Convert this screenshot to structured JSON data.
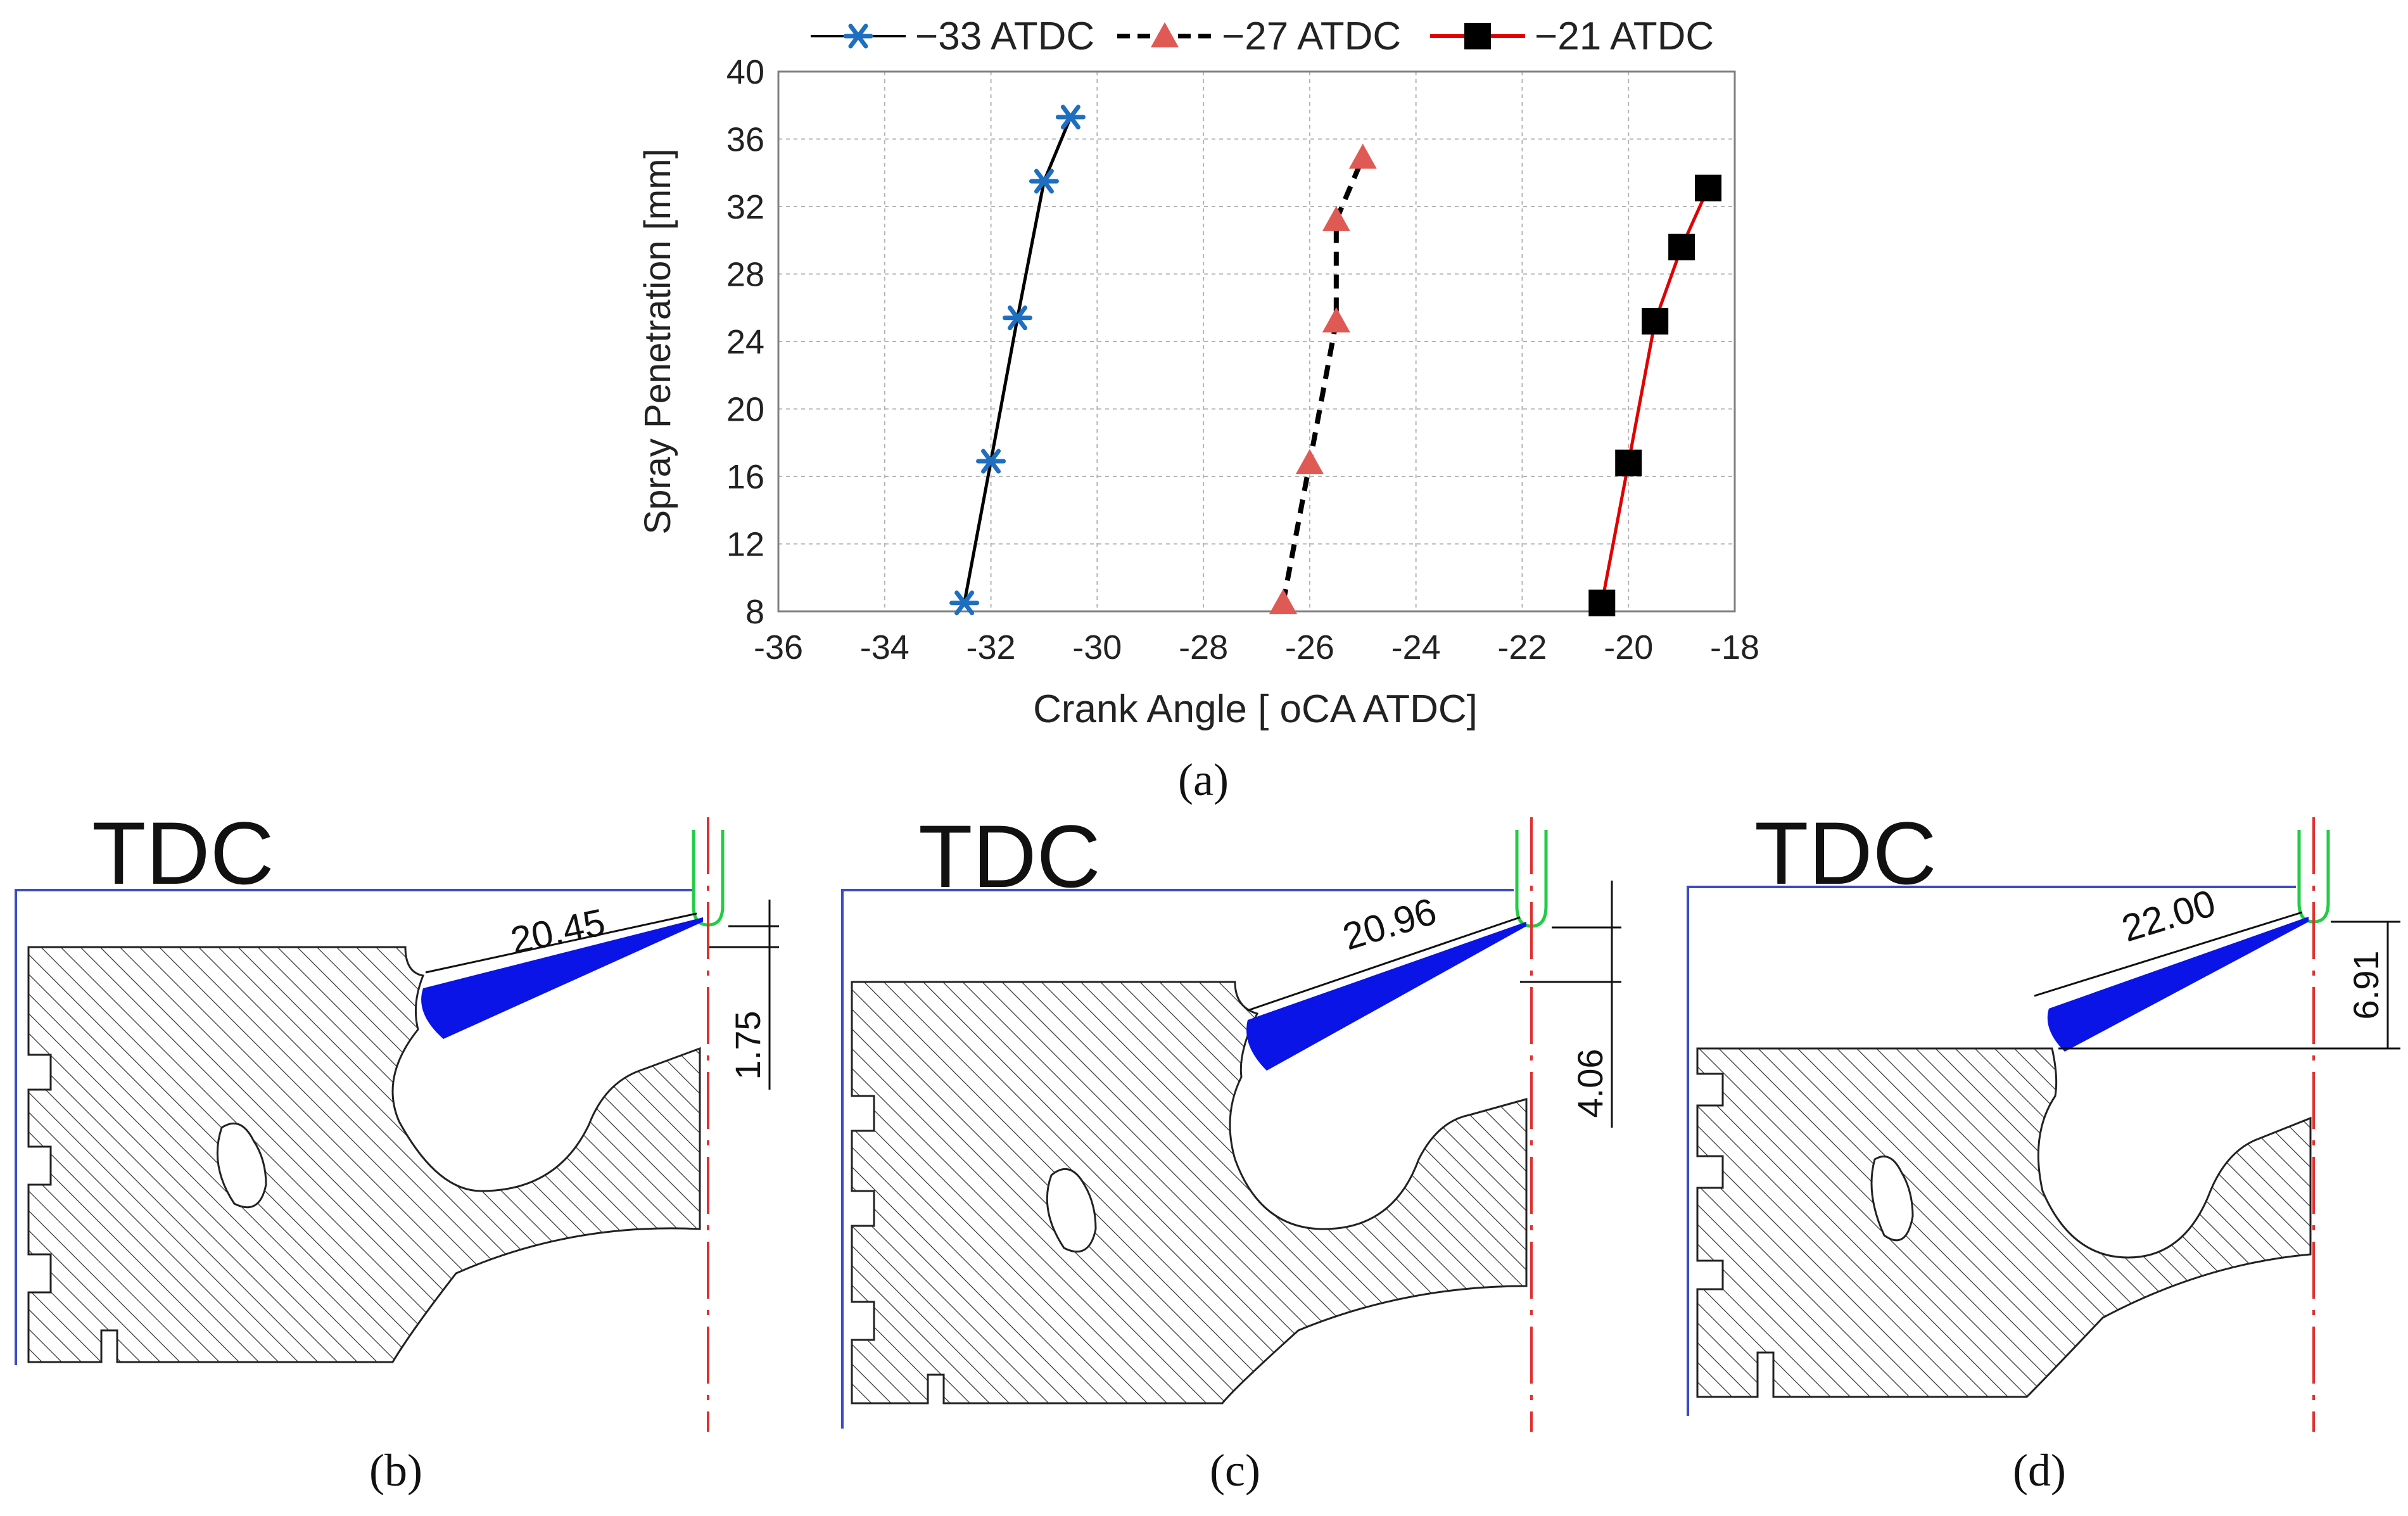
{
  "chart_data": {
    "type": "line",
    "xlabel": "Crank Angle [ oCA ATDC]",
    "ylabel": "Spray Penetration [mm]",
    "xlim": [
      -36,
      -18
    ],
    "ylim": [
      8,
      40
    ],
    "xticks": [
      -36,
      -34,
      -32,
      -30,
      -28,
      -26,
      -24,
      -22,
      -20,
      -18
    ],
    "yticks": [
      8,
      12,
      16,
      20,
      24,
      28,
      32,
      36,
      40
    ],
    "grid": true,
    "legend_position": "top",
    "series": [
      {
        "name": "−33 ATDC",
        "color": "#000000",
        "marker": "star",
        "marker_color": "#1f6fc0",
        "dash": "solid",
        "x": [
          -32.5,
          -32.0,
          -31.5,
          -31.0,
          -30.5
        ],
        "y": [
          8.5,
          16.9,
          25.4,
          33.5,
          37.3
        ]
      },
      {
        "name": "−27 ATDC",
        "color": "#000000",
        "marker": "triangle",
        "marker_color": "#e05a55",
        "dash": "dashed",
        "x": [
          -26.5,
          -26.0,
          -25.5,
          -25.5,
          -25.0
        ],
        "y": [
          8.5,
          16.8,
          25.2,
          31.2,
          34.9
        ]
      },
      {
        "name": "−21 ATDC",
        "color": "#e00000",
        "marker": "square",
        "marker_color": "#000000",
        "dash": "solid",
        "x": [
          -20.5,
          -20.0,
          -19.5,
          -19.0,
          -18.5
        ],
        "y": [
          8.5,
          16.8,
          25.2,
          29.6,
          33.1
        ]
      }
    ]
  },
  "panel_labels": {
    "a": "(a)",
    "b": "(b)",
    "c": "(c)",
    "d": "(d)"
  },
  "panels": [
    {
      "title": "TDC",
      "spray_length": "20.45",
      "offset": "1.75"
    },
    {
      "title": "TDC",
      "spray_length": "20.96",
      "offset": "4.06"
    },
    {
      "title": "TDC",
      "spray_length": "22.00",
      "offset": "6.91"
    }
  ],
  "colors": {
    "spray": "#0a14e6",
    "liner": "#3a4bc8",
    "nozzle": "#22cc44",
    "axis": "#e03030",
    "hatch": "#333333"
  }
}
